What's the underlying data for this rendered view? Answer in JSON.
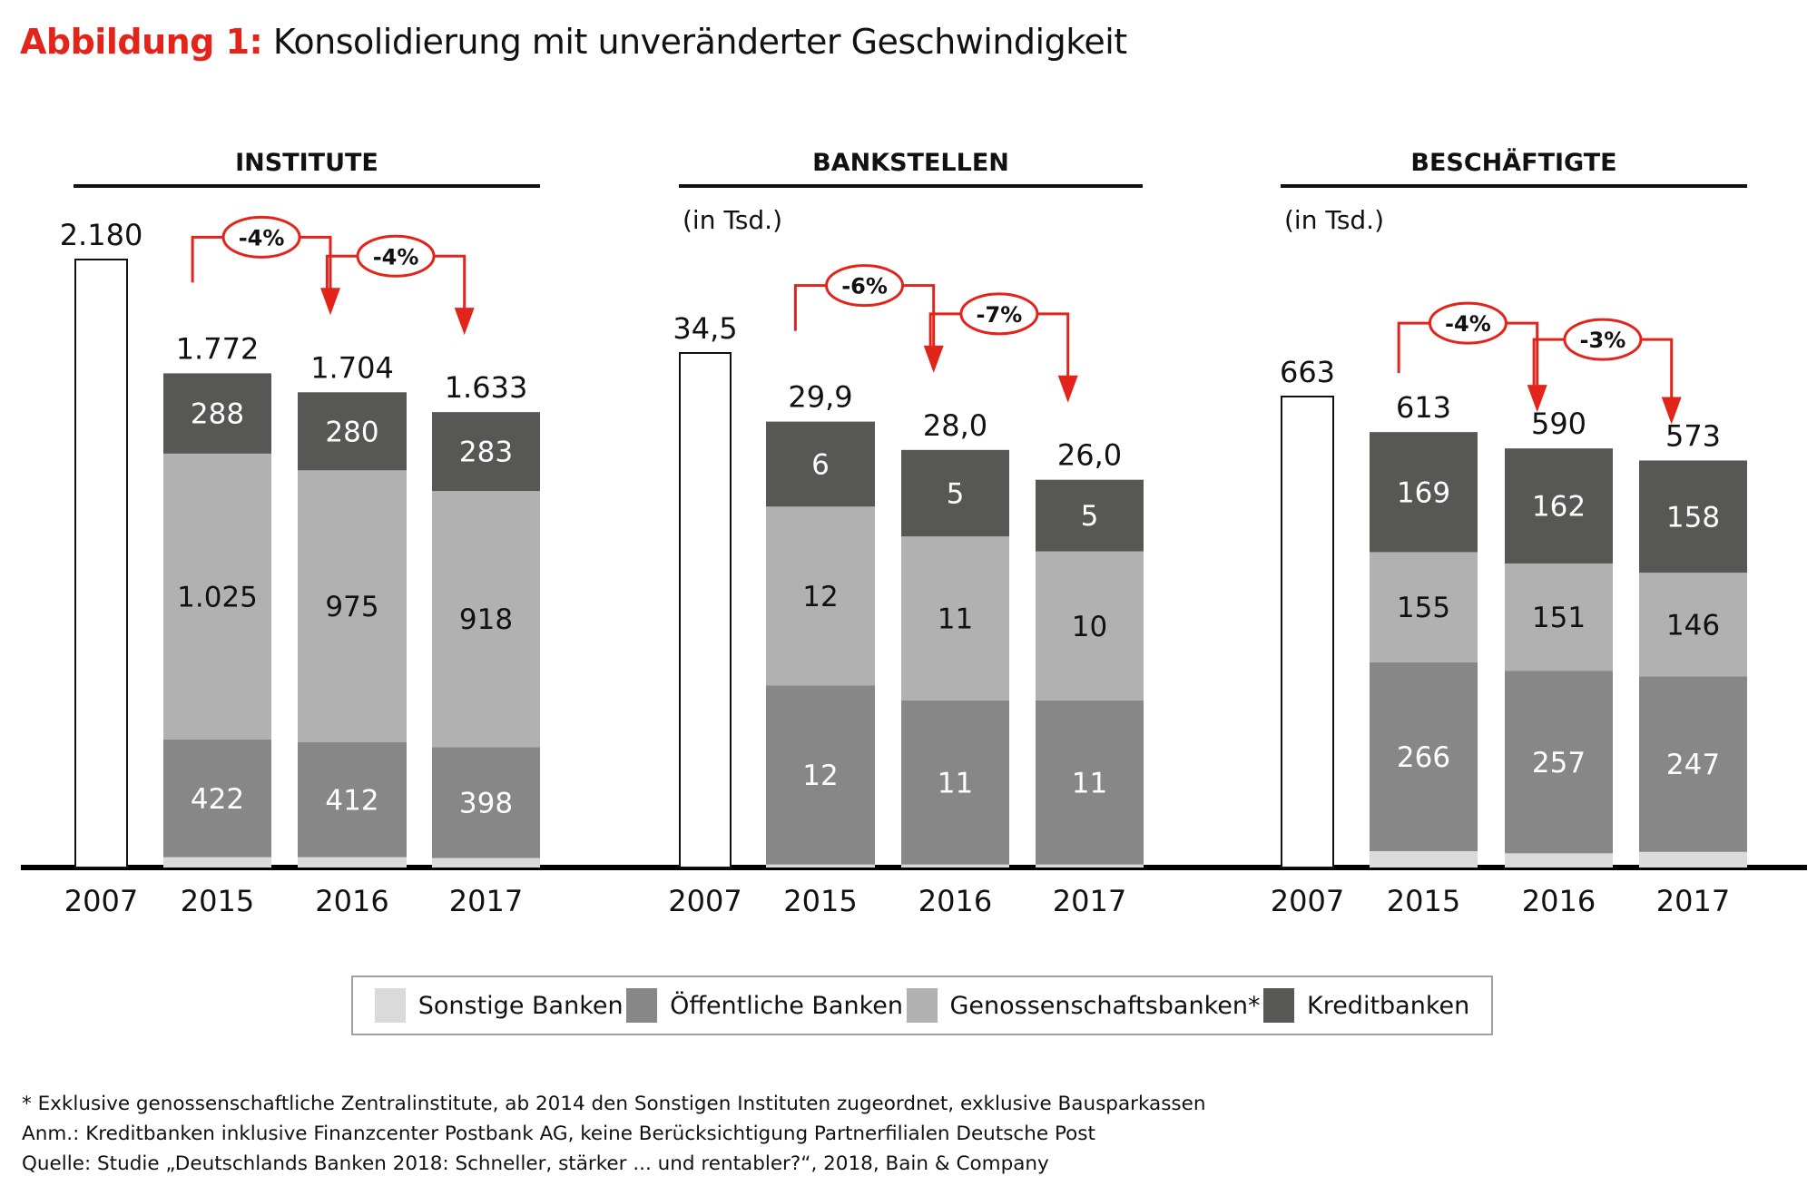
{
  "title": {
    "lead": "Abbildung 1:",
    "text": "Konsolidierung mit unveränderter Geschwindigkeit"
  },
  "colors": {
    "sonstige": "#dadada",
    "oeffentliche": "#878787",
    "genossenschaft": "#b1b1b1",
    "kredit": "#575756",
    "accent": "#e3241b",
    "axis": "#000000"
  },
  "chart_data": [
    {
      "type": "bar",
      "stacked": true,
      "title": "INSTITUTE",
      "subtitle": "",
      "categories": [
        "2007",
        "2015",
        "2016",
        "2017"
      ],
      "totals": [
        2180,
        1772,
        1704,
        1633
      ],
      "total_labels": [
        "2.180",
        "1.772",
        "1.704",
        "1.633"
      ],
      "series": [
        {
          "name": "Sonstige Banken",
          "key": "sonstige",
          "values": [
            null,
            37,
            37,
            34
          ],
          "labels": [
            "",
            "",
            "",
            ""
          ]
        },
        {
          "name": "Öffentliche Banken",
          "key": "oeffentliche",
          "values": [
            null,
            422,
            412,
            398
          ],
          "labels": [
            "",
            "422",
            "412",
            "398"
          ]
        },
        {
          "name": "Genossenschaftsbanken*",
          "key": "genossenschaft",
          "values": [
            null,
            1025,
            975,
            918
          ],
          "labels": [
            "",
            "1.025",
            "975",
            "918"
          ]
        },
        {
          "name": "Kreditbanken",
          "key": "kredit",
          "values": [
            null,
            288,
            280,
            283
          ],
          "labels": [
            "",
            "288",
            "280",
            "283"
          ]
        }
      ],
      "changes": [
        {
          "from": "2015",
          "to": "2016",
          "label": "-4%"
        },
        {
          "from": "2016",
          "to": "2017",
          "label": "-4%"
        }
      ],
      "ylim": [
        0,
        2180
      ]
    },
    {
      "type": "bar",
      "stacked": true,
      "title": "BANKSTELLEN",
      "subtitle": "(in Tsd.)",
      "categories": [
        "2007",
        "2015",
        "2016",
        "2017"
      ],
      "totals": [
        34.5,
        29.9,
        28.0,
        26.0
      ],
      "total_labels": [
        "34,5",
        "29,9",
        "28,0",
        "26,0"
      ],
      "series": [
        {
          "name": "Sonstige Banken",
          "key": "sonstige",
          "values": [
            null,
            0.2,
            0.2,
            0.2
          ],
          "labels": [
            "",
            "",
            "",
            ""
          ]
        },
        {
          "name": "Öffentliche Banken",
          "key": "oeffentliche",
          "values": [
            null,
            12,
            11,
            11
          ],
          "labels": [
            "",
            "12",
            "11",
            "11"
          ]
        },
        {
          "name": "Genossenschaftsbanken*",
          "key": "genossenschaft",
          "values": [
            null,
            12,
            11,
            10
          ],
          "labels": [
            "",
            "12",
            "11",
            "10"
          ]
        },
        {
          "name": "Kreditbanken",
          "key": "kredit",
          "values": [
            null,
            6,
            5,
            5
          ],
          "labels": [
            "",
            "6",
            "5",
            "5"
          ]
        }
      ],
      "changes": [
        {
          "from": "2015",
          "to": "2016",
          "label": "-6%"
        },
        {
          "from": "2016",
          "to": "2017",
          "label": "-7%"
        }
      ],
      "ylim": [
        0,
        34.5
      ]
    },
    {
      "type": "bar",
      "stacked": true,
      "title": "BESCHÄFTIGTE",
      "subtitle": "(in Tsd.)",
      "categories": [
        "2007",
        "2015",
        "2016",
        "2017"
      ],
      "totals": [
        663,
        613,
        590,
        573
      ],
      "total_labels": [
        "663",
        "613",
        "590",
        "573"
      ],
      "series": [
        {
          "name": "Sonstige Banken",
          "key": "sonstige",
          "values": [
            null,
            23,
            20,
            22
          ],
          "labels": [
            "",
            "",
            "",
            ""
          ]
        },
        {
          "name": "Öffentliche Banken",
          "key": "oeffentliche",
          "values": [
            null,
            266,
            257,
            247
          ],
          "labels": [
            "",
            "266",
            "257",
            "247"
          ]
        },
        {
          "name": "Genossenschaftsbanken*",
          "key": "genossenschaft",
          "values": [
            null,
            155,
            151,
            146
          ],
          "labels": [
            "",
            "155",
            "151",
            "146"
          ]
        },
        {
          "name": "Kreditbanken",
          "key": "kredit",
          "values": [
            null,
            169,
            162,
            158
          ],
          "labels": [
            "",
            "169",
            "162",
            "158"
          ]
        }
      ],
      "changes": [
        {
          "from": "2015",
          "to": "2016",
          "label": "-4%"
        },
        {
          "from": "2016",
          "to": "2017",
          "label": "-3%"
        }
      ],
      "ylim": [
        0,
        663
      ]
    }
  ],
  "legend": {
    "placement": "bottom-center",
    "items": [
      {
        "label": "Sonstige Banken",
        "key": "sonstige"
      },
      {
        "label": "Öffentliche Banken",
        "key": "oeffentliche"
      },
      {
        "label": "Genossenschaftsbanken*",
        "key": "genossenschaft"
      },
      {
        "label": "Kreditbanken",
        "key": "kredit"
      }
    ]
  },
  "footnotes": [
    "* Exklusive genossenschaftliche Zentralinstitute, ab 2014 den Sonstigen Instituten zugeordnet, exklusive Bausparkassen",
    "Anm.: Kreditbanken inklusive Finanzcenter Postbank AG, keine Berücksichtigung Partnerfilialen Deutsche Post",
    "Quelle: Studie „Deutschlands Banken 2018: Schneller, stärker ... und rentabler?“, 2018, Bain & Company"
  ]
}
